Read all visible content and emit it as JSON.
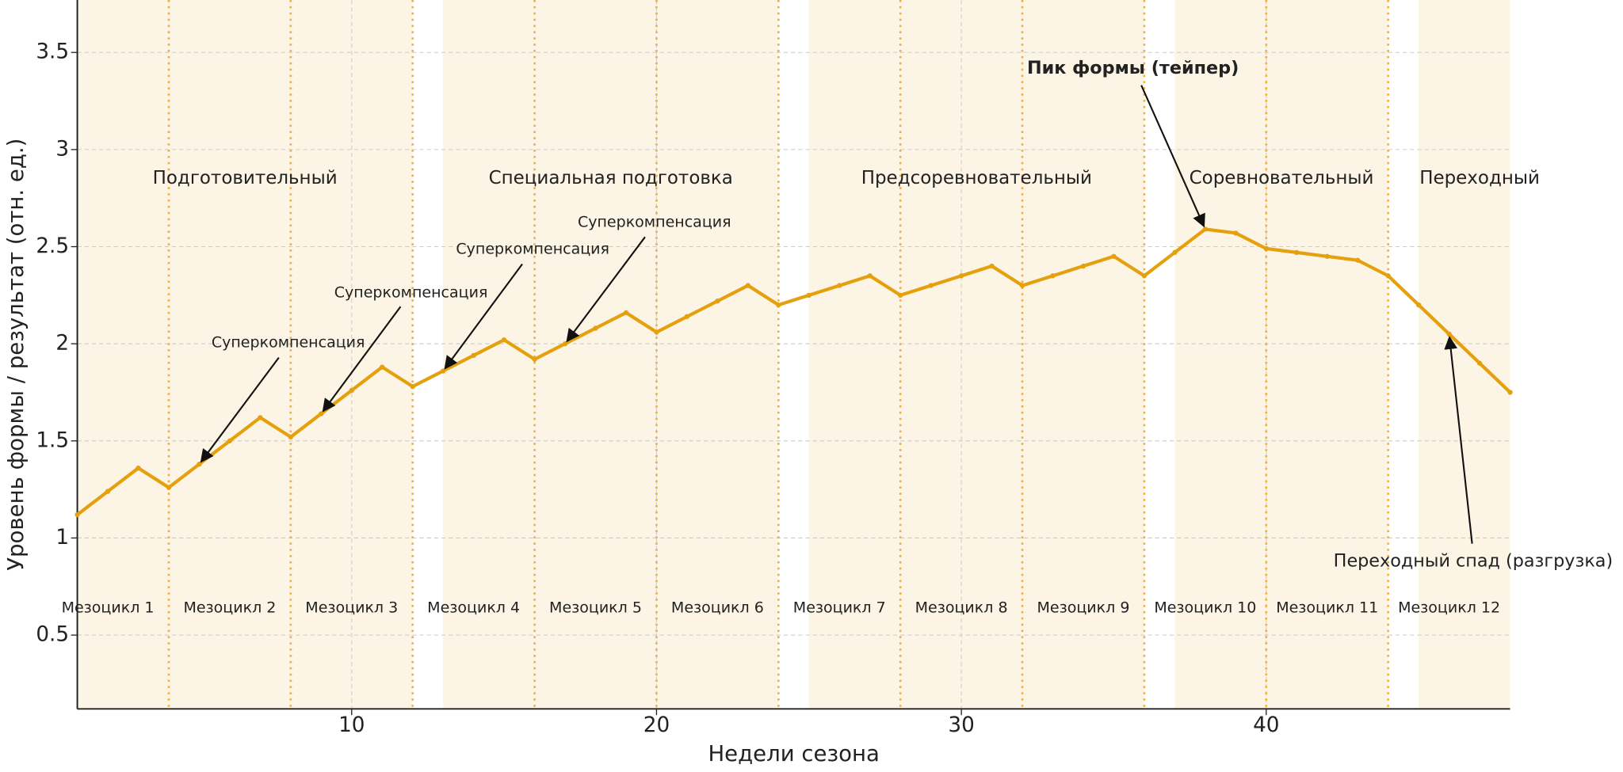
{
  "chart_data": {
    "type": "line",
    "xlabel": "Недели сезона",
    "ylabel": "Уровень формы / результат (отн. ед.)",
    "x": [
      1,
      2,
      3,
      4,
      5,
      6,
      7,
      8,
      9,
      10,
      11,
      12,
      13,
      14,
      15,
      16,
      17,
      18,
      19,
      20,
      21,
      22,
      23,
      24,
      25,
      26,
      27,
      28,
      29,
      30,
      31,
      32,
      33,
      34,
      35,
      36,
      37,
      38,
      39,
      40,
      41,
      42,
      43,
      44,
      45,
      46,
      47,
      48
    ],
    "series": [
      {
        "color": "#e5a00d",
        "values": [
          1.12,
          1.24,
          1.36,
          1.26,
          1.38,
          1.5,
          1.62,
          1.52,
          1.64,
          1.76,
          1.88,
          1.78,
          1.86,
          1.94,
          2.02,
          1.92,
          2.0,
          2.08,
          2.16,
          2.06,
          2.14,
          2.22,
          2.3,
          2.2,
          2.25,
          2.3,
          2.35,
          2.25,
          2.3,
          2.35,
          2.4,
          2.3,
          2.35,
          2.4,
          2.45,
          2.35,
          2.47,
          2.59,
          2.57,
          2.49,
          2.47,
          2.45,
          2.43,
          2.35,
          2.2,
          2.05,
          1.9,
          1.75
        ]
      }
    ],
    "xlim": [
      1,
      48
    ],
    "ylim": [
      0.12,
      3.77
    ],
    "xticks": [
      10,
      20,
      30,
      40
    ],
    "yticks": [
      0.5,
      1.0,
      1.5,
      2.0,
      2.5,
      3.0,
      3.5
    ],
    "grid": true,
    "phases": [
      {
        "name": "Подготовительный",
        "start": 1,
        "end": 12
      },
      {
        "name": "Специальная подготовка",
        "start": 13,
        "end": 24
      },
      {
        "name": "Предсоревновательный",
        "start": 25,
        "end": 36
      },
      {
        "name": "Соревновательный",
        "start": 37,
        "end": 44
      },
      {
        "name": "Переходный",
        "start": 45,
        "end": 48
      }
    ],
    "phase_color": "#fcf4e4",
    "mesocycles": [
      "Мезоцикл 1",
      "Мезоцикл 2",
      "Мезоцикл 3",
      "Мезоцикл 4",
      "Мезоцикл 5",
      "Мезоцикл 6",
      "Мезоцикл 7",
      "Мезоцикл 8",
      "Мезоцикл 9",
      "Мезоцикл 10",
      "Мезоцикл 11",
      "Мезоцикл 12"
    ],
    "mesocycle_boundaries": [
      4,
      8,
      12,
      16,
      20,
      24,
      28,
      32,
      36,
      40,
      44
    ],
    "annotations": [
      {
        "text": "Суперкомпенсация",
        "x": 5
      },
      {
        "text": "Суперкомпенсация",
        "x": 9
      },
      {
        "text": "Суперкомпенсация",
        "x": 13
      },
      {
        "text": "Суперкомпенсация",
        "x": 17
      },
      {
        "text": "Пик формы (тейпер)",
        "x": 38
      },
      {
        "text": "Переходный спад (разгрузка)",
        "x": 46
      }
    ]
  }
}
